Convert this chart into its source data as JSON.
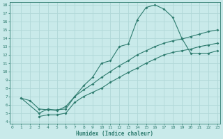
{
  "xlabel": "Humidex (Indice chaleur)",
  "xlim": [
    0,
    23
  ],
  "ylim": [
    4,
    18
  ],
  "xticks": [
    0,
    1,
    2,
    3,
    4,
    5,
    6,
    7,
    8,
    9,
    10,
    11,
    12,
    13,
    14,
    15,
    16,
    17,
    18,
    19,
    20,
    21,
    22,
    23
  ],
  "yticks": [
    4,
    5,
    6,
    7,
    8,
    9,
    10,
    11,
    12,
    13,
    14,
    15,
    16,
    17,
    18
  ],
  "bg_color": "#c9eaea",
  "line_color": "#2d7b6e",
  "grid_color": "#b0d8d8",
  "line1_x": [
    1,
    2,
    3,
    4,
    5,
    6,
    7,
    8,
    9,
    10,
    11,
    12,
    13,
    14,
    15,
    16,
    17,
    18,
    19,
    20,
    21,
    22,
    23
  ],
  "line1_y": [
    6.8,
    6.5,
    5.5,
    5.4,
    5.4,
    5.5,
    7.0,
    8.3,
    9.3,
    11.0,
    11.3,
    13.0,
    13.3,
    16.2,
    17.7,
    18.0,
    17.5,
    16.5,
    14.0,
    12.2,
    12.2,
    12.2,
    12.5
  ],
  "line2_x": [
    1,
    3,
    4,
    5,
    6,
    7,
    8,
    9,
    10,
    11,
    12,
    13,
    14,
    15,
    16,
    17,
    18,
    19,
    20,
    21,
    22,
    23
  ],
  "line2_y": [
    6.8,
    5.0,
    5.5,
    5.3,
    5.8,
    7.0,
    7.8,
    8.5,
    9.3,
    10.0,
    10.7,
    11.3,
    12.0,
    12.5,
    13.0,
    13.4,
    13.7,
    13.9,
    14.2,
    14.5,
    14.8,
    15.0
  ],
  "line3_x": [
    3,
    4,
    5,
    6,
    7,
    8,
    9,
    10,
    11,
    12,
    13,
    14,
    15,
    16,
    17,
    18,
    19,
    20,
    21,
    22,
    23
  ],
  "line3_y": [
    4.6,
    4.8,
    4.8,
    5.0,
    6.3,
    7.0,
    7.5,
    8.0,
    8.7,
    9.3,
    9.9,
    10.4,
    11.0,
    11.5,
    12.0,
    12.3,
    12.5,
    12.7,
    13.0,
    13.2,
    13.4
  ]
}
